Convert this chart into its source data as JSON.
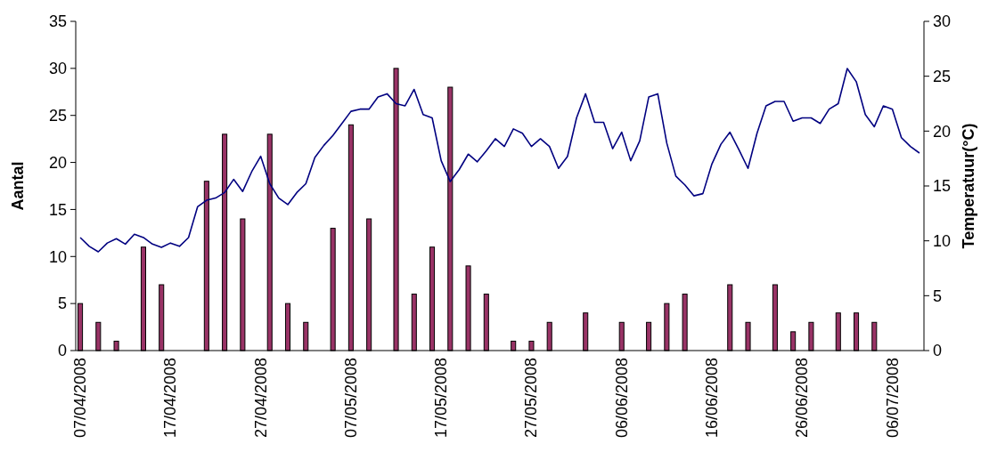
{
  "chart_data": {
    "type": "bar",
    "ylabel": "Aantal",
    "y2label": "Temperatuur(°C)",
    "categories": [
      "07/04/2008",
      null,
      null,
      null,
      null,
      null,
      null,
      null,
      null,
      null,
      "17/04/2008",
      null,
      null,
      null,
      null,
      null,
      null,
      null,
      null,
      null,
      "27/04/2008",
      null,
      null,
      null,
      null,
      null,
      null,
      null,
      null,
      null,
      "07/05/2008",
      null,
      null,
      null,
      null,
      null,
      null,
      null,
      null,
      null,
      "17/05/2008",
      null,
      null,
      null,
      null,
      null,
      null,
      null,
      null,
      null,
      "27/05/2008",
      null,
      null,
      null,
      null,
      null,
      null,
      null,
      null,
      null,
      "06/06/2008",
      null,
      null,
      null,
      null,
      null,
      null,
      null,
      null,
      null,
      "16/06/2008",
      null,
      null,
      null,
      null,
      null,
      null,
      null,
      null,
      null,
      "26/06/2008",
      null,
      null,
      null,
      null,
      null,
      null,
      null,
      null,
      null,
      "06/07/2008",
      null,
      null,
      null
    ],
    "series": [
      {
        "color": "#993366",
        "values": [
          5,
          null,
          3,
          null,
          1,
          null,
          null,
          11,
          null,
          7,
          null,
          null,
          null,
          null,
          18,
          null,
          23,
          null,
          14,
          null,
          null,
          23,
          null,
          5,
          null,
          3,
          null,
          null,
          13,
          null,
          24,
          null,
          14,
          null,
          null,
          30,
          null,
          6,
          null,
          11,
          null,
          28,
          null,
          9,
          null,
          6,
          null,
          null,
          1,
          null,
          1,
          null,
          3,
          null,
          null,
          null,
          4,
          null,
          null,
          null,
          3,
          null,
          null,
          3,
          null,
          5,
          null,
          6,
          null,
          null,
          null,
          null,
          7,
          null,
          3,
          null,
          null,
          7,
          null,
          2,
          null,
          3,
          null,
          null,
          4,
          null,
          4,
          null,
          3,
          null,
          null,
          null,
          null,
          null
        ]
      },
      {
        "type": "line",
        "axis": "y2",
        "color": "#000080",
        "values": [
          10.3,
          9.5,
          9.0,
          9.8,
          10.2,
          9.7,
          10.6,
          10.3,
          9.7,
          9.4,
          9.8,
          9.5,
          10.3,
          13.1,
          13.7,
          13.9,
          14.4,
          15.6,
          14.5,
          16.3,
          17.7,
          15.2,
          13.9,
          13.3,
          14.4,
          15.2,
          17.6,
          18.7,
          19.6,
          20.7,
          21.8,
          22.0,
          22.0,
          23.1,
          23.4,
          22.5,
          22.3,
          23.8,
          21.5,
          21.2,
          17.3,
          15.4,
          16.5,
          17.9,
          17.2,
          18.2,
          19.3,
          18.6,
          20.2,
          19.8,
          18.6,
          19.3,
          18.6,
          16.6,
          17.7,
          21.2,
          23.4,
          20.8,
          20.8,
          18.4,
          19.9,
          17.3,
          19.1,
          23.1,
          23.4,
          18.9,
          15.9,
          15.1,
          14.1,
          14.3,
          17.0,
          18.8,
          19.9,
          18.3,
          16.6,
          19.8,
          22.3,
          22.7,
          22.7,
          20.9,
          21.2,
          21.2,
          20.7,
          22.0,
          22.5,
          25.7,
          24.5,
          21.5,
          20.4,
          22.3,
          22.0,
          19.4,
          18.6,
          18.0
        ]
      }
    ],
    "ylim": [
      0,
      35
    ],
    "yticks": [
      0,
      5,
      10,
      15,
      20,
      25,
      30,
      35
    ],
    "y2lim": [
      0,
      30
    ],
    "y2ticks": [
      0,
      5,
      10,
      15,
      20,
      25,
      30
    ],
    "grid": false,
    "line_style": "solid",
    "marker": "none"
  }
}
